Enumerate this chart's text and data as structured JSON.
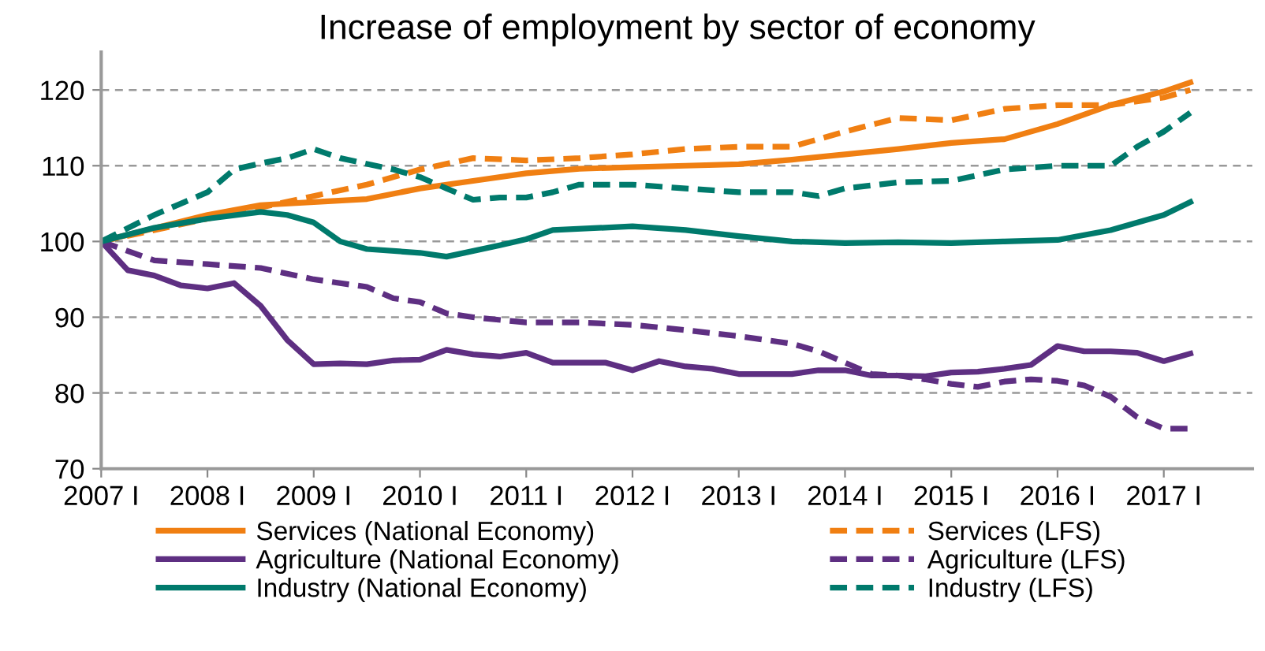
{
  "chart_data": {
    "type": "line",
    "title": "Increase of employment by sector of economy",
    "xlim": [
      "2007-01",
      "2017-11"
    ],
    "ylim": [
      70,
      125
    ],
    "xticks": [
      {
        "value": "2007-01",
        "label": "2007 I"
      },
      {
        "value": "2008-01",
        "label": "2008 I"
      },
      {
        "value": "2009-01",
        "label": "2009 I"
      },
      {
        "value": "2010-01",
        "label": "2010 I"
      },
      {
        "value": "2011-01",
        "label": "2011 I"
      },
      {
        "value": "2012-01",
        "label": "2012 I"
      },
      {
        "value": "2013-01",
        "label": "2013 I"
      },
      {
        "value": "2014-01",
        "label": "2014 I"
      },
      {
        "value": "2015-01",
        "label": "2015 I"
      },
      {
        "value": "2016-01",
        "label": "2016 I"
      },
      {
        "value": "2017-01",
        "label": "2017 I"
      }
    ],
    "yticks": [
      70,
      80,
      90,
      100,
      110,
      120
    ],
    "grid": "y",
    "legend": "bottom",
    "marker": "none",
    "series": [
      {
        "name": "Services (National Economy)",
        "color": "#f07f12",
        "line_style": "solid",
        "x": [
          "2007-01",
          "2008-01",
          "2008-07",
          "2009-01",
          "2009-07",
          "2010-01",
          "2010-07",
          "2011-01",
          "2011-07",
          "2012-01",
          "2012-07",
          "2013-01",
          "2013-07",
          "2014-01",
          "2014-07",
          "2015-01",
          "2015-07",
          "2016-01",
          "2016-07",
          "2017-01",
          "2017-04"
        ],
        "values": [
          100,
          103.5,
          104.8,
          105.2,
          105.6,
          107,
          108,
          109,
          109.6,
          109.8,
          110,
          110.2,
          110.8,
          111.5,
          112.2,
          113,
          113.5,
          115.5,
          118,
          119.8,
          121
        ]
      },
      {
        "name": "Services (LFS)",
        "color": "#f07f12",
        "line_style": "dashed",
        "x": [
          "2007-01",
          "2008-01",
          "2008-07",
          "2009-01",
          "2009-07",
          "2010-01",
          "2010-07",
          "2011-01",
          "2011-07",
          "2012-01",
          "2012-07",
          "2013-01",
          "2013-07",
          "2014-01",
          "2014-07",
          "2015-01",
          "2015-07",
          "2016-01",
          "2016-07",
          "2017-01",
          "2017-04"
        ],
        "values": [
          100,
          103,
          104.5,
          106,
          107.5,
          109.5,
          111,
          110.7,
          111,
          111.5,
          112.2,
          112.5,
          112.5,
          114.5,
          116.3,
          116,
          117.5,
          118,
          118,
          119,
          120
        ]
      },
      {
        "name": "Agriculture (National Economy)",
        "color": "#5e2f82",
        "line_style": "solid",
        "x": [
          "2007-01",
          "2007-04",
          "2007-07",
          "2007-10",
          "2008-01",
          "2008-04",
          "2008-07",
          "2008-10",
          "2009-01",
          "2009-04",
          "2009-07",
          "2009-10",
          "2010-01",
          "2010-04",
          "2010-07",
          "2010-10",
          "2011-01",
          "2011-04",
          "2011-07",
          "2011-10",
          "2012-01",
          "2012-04",
          "2012-07",
          "2012-10",
          "2013-01",
          "2013-04",
          "2013-07",
          "2013-10",
          "2014-01",
          "2014-04",
          "2014-07",
          "2014-10",
          "2015-01",
          "2015-04",
          "2015-07",
          "2015-10",
          "2016-01",
          "2016-04",
          "2016-07",
          "2016-10",
          "2017-01",
          "2017-04"
        ],
        "values": [
          100,
          96.2,
          95.5,
          94.2,
          93.8,
          94.5,
          91.5,
          87,
          83.8,
          83.9,
          83.8,
          84.3,
          84.4,
          85.7,
          85.1,
          84.8,
          85.3,
          84,
          84,
          84,
          83,
          84.2,
          83.5,
          83.2,
          82.5,
          82.5,
          82.5,
          83,
          83,
          82.3,
          82.3,
          82.2,
          82.7,
          82.8,
          83.2,
          83.7,
          86.2,
          85.5,
          85.5,
          85.3,
          84.2,
          85.2
        ]
      },
      {
        "name": "Agriculture (LFS)",
        "color": "#5e2f82",
        "line_style": "dashed",
        "x": [
          "2007-01",
          "2007-07",
          "2008-01",
          "2008-07",
          "2009-01",
          "2009-07",
          "2009-10",
          "2010-01",
          "2010-04",
          "2010-07",
          "2011-01",
          "2011-07",
          "2012-01",
          "2012-07",
          "2013-01",
          "2013-07",
          "2013-10",
          "2014-01",
          "2014-04",
          "2014-07",
          "2014-10",
          "2015-01",
          "2015-04",
          "2015-07",
          "2015-10",
          "2016-01",
          "2016-04",
          "2016-07",
          "2016-10",
          "2017-01",
          "2017-04"
        ],
        "values": [
          100,
          97.5,
          97,
          96.5,
          95,
          94,
          92.5,
          92,
          90.5,
          90,
          89.3,
          89.3,
          89,
          88.3,
          87.5,
          86.5,
          85.5,
          84,
          82.5,
          82.3,
          81.8,
          81.2,
          80.8,
          81.5,
          81.8,
          81.6,
          81,
          79.5,
          76.8,
          75.3,
          75.3
        ]
      },
      {
        "name": "Industry (National Economy)",
        "color": "#007a6c",
        "line_style": "solid",
        "x": [
          "2007-01",
          "2007-07",
          "2008-01",
          "2008-07",
          "2008-10",
          "2009-01",
          "2009-04",
          "2009-07",
          "2010-01",
          "2010-04",
          "2010-10",
          "2011-01",
          "2011-04",
          "2012-01",
          "2012-07",
          "2013-01",
          "2013-07",
          "2014-01",
          "2014-07",
          "2015-01",
          "2015-07",
          "2016-01",
          "2016-07",
          "2017-01",
          "2017-04"
        ],
        "values": [
          100,
          101.8,
          103,
          103.9,
          103.5,
          102.5,
          100,
          99,
          98.5,
          98,
          99.5,
          100.3,
          101.5,
          102,
          101.5,
          100.7,
          100,
          99.8,
          99.9,
          99.8,
          100,
          100.2,
          101.5,
          103.5,
          105.2
        ]
      },
      {
        "name": "Industry (LFS)",
        "color": "#007a6c",
        "line_style": "dashed",
        "x": [
          "2007-01",
          "2007-07",
          "2008-01",
          "2008-04",
          "2008-07",
          "2008-10",
          "2009-01",
          "2009-04",
          "2009-10",
          "2010-01",
          "2010-04",
          "2010-07",
          "2010-10",
          "2011-01",
          "2011-04",
          "2011-07",
          "2012-01",
          "2012-07",
          "2013-01",
          "2013-07",
          "2013-10",
          "2014-01",
          "2014-07",
          "2015-01",
          "2015-07",
          "2016-01",
          "2016-07",
          "2016-10",
          "2017-01",
          "2017-04"
        ],
        "values": [
          100,
          103.5,
          106.5,
          109.5,
          110.3,
          111,
          112.2,
          111,
          109.5,
          108.5,
          107,
          105.5,
          105.8,
          105.8,
          106.5,
          107.5,
          107.5,
          107,
          106.5,
          106.5,
          106,
          107,
          107.8,
          108,
          109.5,
          110,
          110,
          112.5,
          114.5,
          117
        ]
      }
    ]
  }
}
